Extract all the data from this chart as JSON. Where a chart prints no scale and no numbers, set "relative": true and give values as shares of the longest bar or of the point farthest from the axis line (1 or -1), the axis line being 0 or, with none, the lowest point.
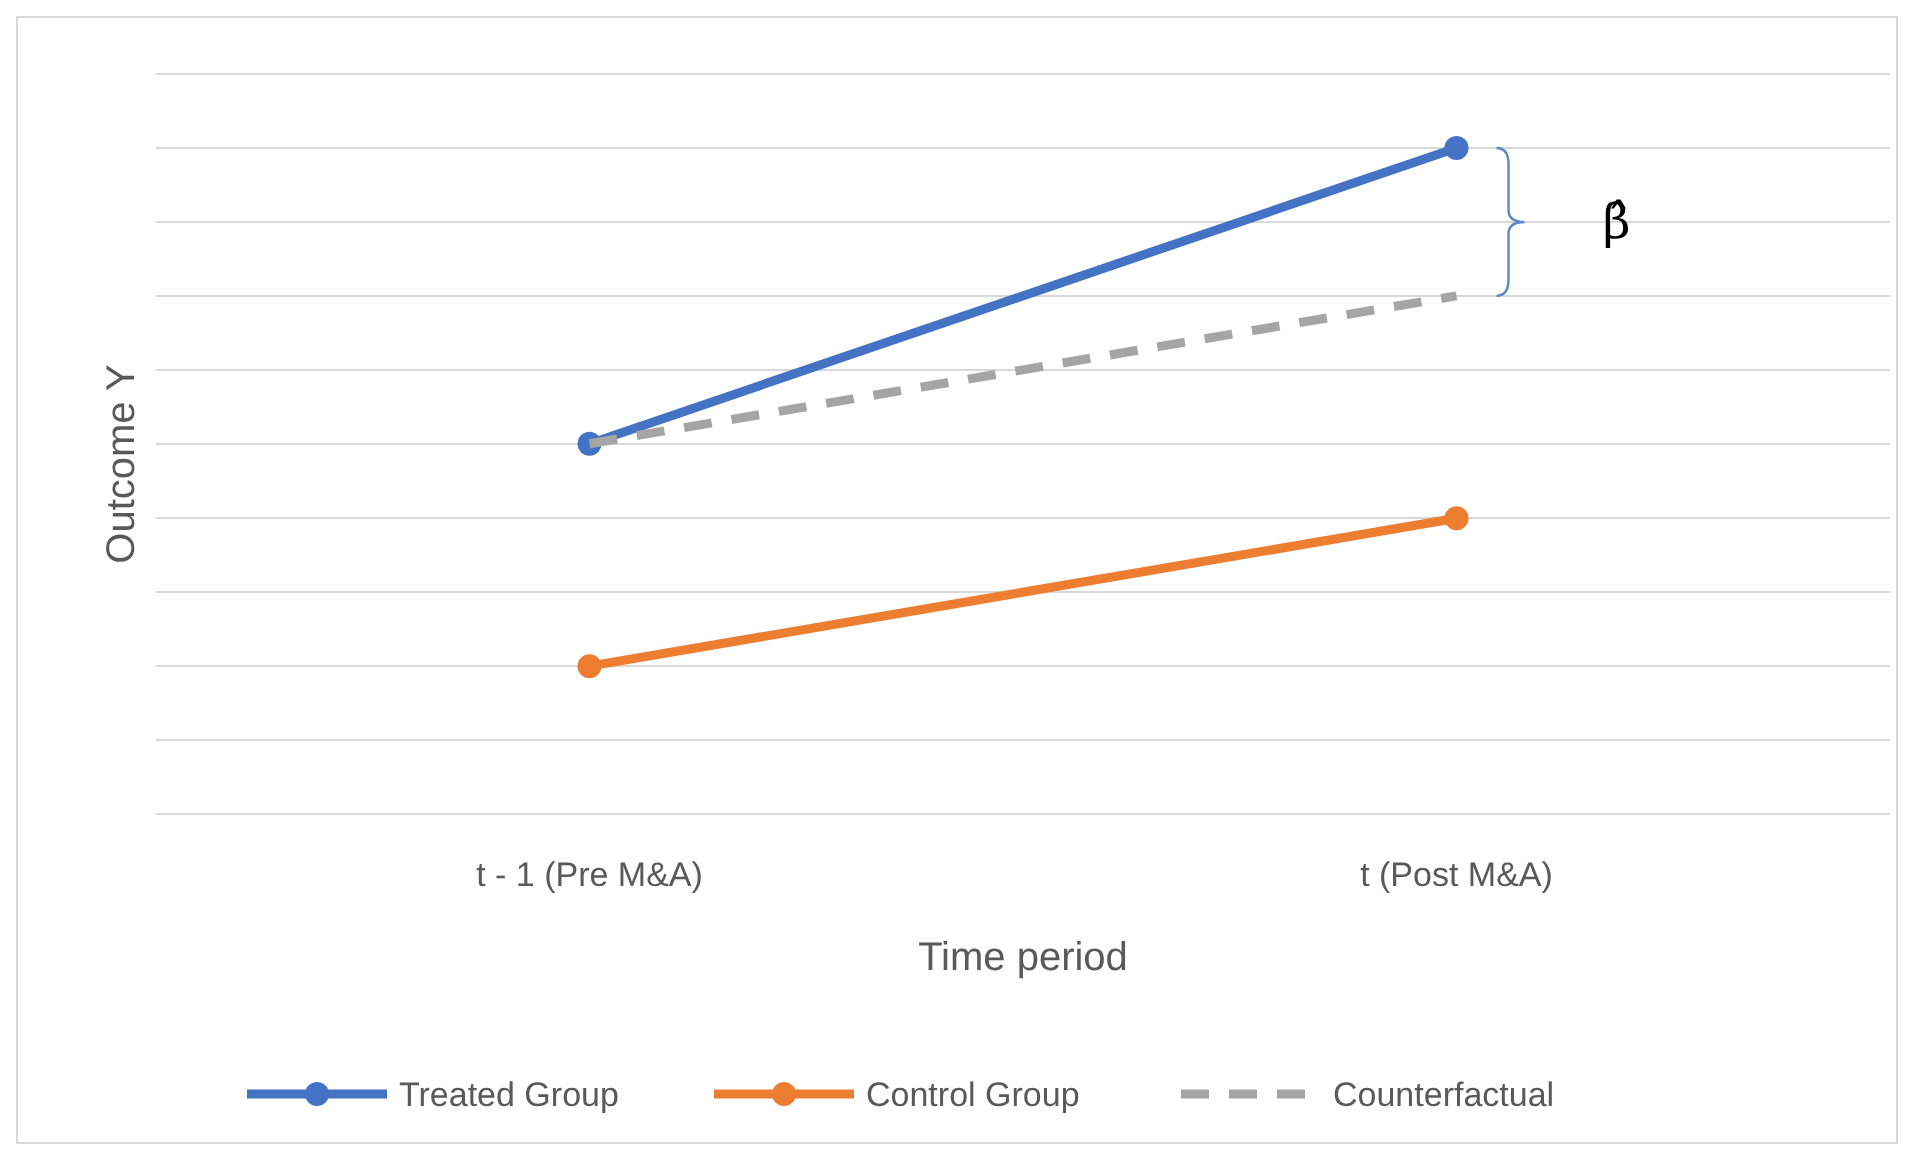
{
  "chart_data": {
    "type": "line",
    "relative": true,
    "xlabel": "Time period",
    "ylabel": "Outcome Y",
    "categories": [
      "t - 1 (Pre M&A)",
      "t (Post M&A)"
    ],
    "grid": "y",
    "legend": "bottom",
    "marker": "circle",
    "line_style": "solid",
    "series": [
      {
        "name": "Treated Group",
        "color": "#4472c4",
        "values": [
          0.556,
          1
        ]
      },
      {
        "name": "Control Group",
        "color": "#ed7d31",
        "values": [
          0.222,
          0.444
        ]
      },
      {
        "name": "Counterfactual",
        "color": "#a5a5a5",
        "values": [
          0.556,
          0.778
        ],
        "marker": "none",
        "line_style": "dashed"
      }
    ],
    "annotations": [
      "β̂"
    ]
  }
}
